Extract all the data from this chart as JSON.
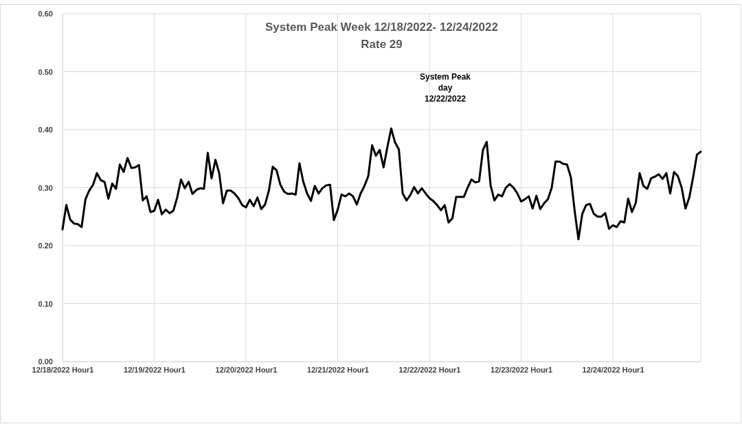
{
  "chart_data": {
    "type": "line",
    "title": "System Peak Week 12/18/2022- 12/24/2022",
    "subtitle": "Rate 29",
    "annotations": [
      "System Peak day 12/22/2022"
    ],
    "categories": [
      "12/18/2022 Hour1",
      null,
      null,
      null,
      null,
      null,
      null,
      null,
      null,
      null,
      null,
      null,
      null,
      null,
      null,
      null,
      null,
      null,
      null,
      null,
      null,
      null,
      null,
      null,
      "12/19/2022 Hour1",
      null,
      null,
      null,
      null,
      null,
      null,
      null,
      null,
      null,
      null,
      null,
      null,
      null,
      null,
      null,
      null,
      null,
      null,
      null,
      null,
      null,
      null,
      null,
      "12/20/2022 Hour1",
      null,
      null,
      null,
      null,
      null,
      null,
      null,
      null,
      null,
      null,
      null,
      null,
      null,
      null,
      null,
      null,
      null,
      null,
      null,
      null,
      null,
      null,
      null,
      "12/21/2022 Hour1",
      null,
      null,
      null,
      null,
      null,
      null,
      null,
      null,
      null,
      null,
      null,
      null,
      null,
      null,
      null,
      null,
      null,
      null,
      null,
      null,
      null,
      null,
      null,
      "12/22/2022 Hour1",
      null,
      null,
      null,
      null,
      null,
      null,
      null,
      null,
      null,
      null,
      null,
      null,
      null,
      null,
      null,
      null,
      null,
      null,
      null,
      null,
      null,
      null,
      null,
      "12/23/2022 Hour1",
      null,
      null,
      null,
      null,
      null,
      null,
      null,
      null,
      null,
      null,
      null,
      null,
      null,
      null,
      null,
      null,
      null,
      null,
      null,
      null,
      null,
      null,
      null,
      "12/24/2022 Hour1",
      null,
      null,
      null,
      null,
      null,
      null,
      null,
      null,
      null,
      null,
      null,
      null,
      null,
      null,
      null,
      null,
      null,
      null,
      null,
      null,
      null,
      null,
      null
    ],
    "series": [
      {
        "color": "#000000",
        "values": [
          0.228,
          0.27,
          0.245,
          0.238,
          0.237,
          0.232,
          0.28,
          0.295,
          0.305,
          0.325,
          0.313,
          0.31,
          0.281,
          0.307,
          0.298,
          0.34,
          0.327,
          0.351,
          0.334,
          0.335,
          0.339,
          0.278,
          0.285,
          0.258,
          0.26,
          0.279,
          0.254,
          0.262,
          0.256,
          0.26,
          0.283,
          0.314,
          0.299,
          0.31,
          0.289,
          0.296,
          0.299,
          0.298,
          0.36,
          0.316,
          0.348,
          0.325,
          0.273,
          0.295,
          0.295,
          0.29,
          0.282,
          0.27,
          0.266,
          0.279,
          0.268,
          0.283,
          0.263,
          0.271,
          0.295,
          0.336,
          0.33,
          0.305,
          0.293,
          0.289,
          0.29,
          0.288,
          0.342,
          0.31,
          0.29,
          0.277,
          0.303,
          0.29,
          0.299,
          0.304,
          0.305,
          0.244,
          0.262,
          0.288,
          0.285,
          0.29,
          0.285,
          0.271,
          0.29,
          0.303,
          0.32,
          0.373,
          0.355,
          0.365,
          0.335,
          0.37,
          0.402,
          0.378,
          0.366,
          0.29,
          0.278,
          0.287,
          0.301,
          0.29,
          0.299,
          0.29,
          0.282,
          0.277,
          0.27,
          0.261,
          0.27,
          0.24,
          0.247,
          0.284,
          0.284,
          0.284,
          0.3,
          0.314,
          0.309,
          0.311,
          0.365,
          0.379,
          0.304,
          0.278,
          0.288,
          0.285,
          0.3,
          0.306,
          0.3,
          0.29,
          0.276,
          0.28,
          0.285,
          0.264,
          0.286,
          0.263,
          0.273,
          0.28,
          0.3,
          0.345,
          0.345,
          0.341,
          0.34,
          0.318,
          0.26,
          0.211,
          0.255,
          0.27,
          0.272,
          0.255,
          0.25,
          0.25,
          0.256,
          0.229,
          0.235,
          0.232,
          0.242,
          0.24,
          0.281,
          0.258,
          0.274,
          0.325,
          0.303,
          0.298,
          0.316,
          0.319,
          0.323,
          0.315,
          0.325,
          0.29,
          0.327,
          0.32,
          0.3,
          0.264,
          0.283,
          0.318,
          0.357,
          0.362
        ]
      }
    ],
    "ylim": [
      0,
      0.6
    ],
    "yticks": [
      {
        "value": 0,
        "label": "0.00"
      },
      {
        "value": 0.1,
        "label": "0.10"
      },
      {
        "value": 0.2,
        "label": "0.20"
      },
      {
        "value": 0.3,
        "label": "0.30"
      },
      {
        "value": 0.4,
        "label": "0.40"
      },
      {
        "value": 0.5,
        "label": "0.50"
      },
      {
        "value": 0.6,
        "label": "0.60"
      }
    ],
    "grid": true,
    "line_style": "solid"
  }
}
